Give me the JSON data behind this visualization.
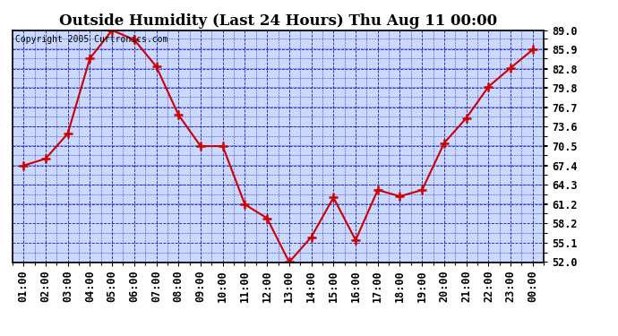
{
  "title": "Outside Humidity (Last 24 Hours) Thu Aug 11 00:00",
  "copyright": "Copyright 2005 Curtronics.com",
  "x_labels": [
    "01:00",
    "02:00",
    "03:00",
    "04:00",
    "05:00",
    "06:00",
    "07:00",
    "08:00",
    "09:00",
    "10:00",
    "11:00",
    "12:00",
    "13:00",
    "14:00",
    "15:00",
    "16:00",
    "17:00",
    "18:00",
    "19:00",
    "20:00",
    "21:00",
    "22:00",
    "23:00",
    "00:00"
  ],
  "x_values": [
    1,
    2,
    3,
    4,
    5,
    6,
    7,
    8,
    9,
    10,
    11,
    12,
    13,
    14,
    15,
    16,
    17,
    18,
    19,
    20,
    21,
    22,
    23,
    24
  ],
  "y_values": [
    67.4,
    68.5,
    72.5,
    84.5,
    89.0,
    87.5,
    83.2,
    75.5,
    70.5,
    70.5,
    61.2,
    59.0,
    52.0,
    56.0,
    62.3,
    55.5,
    63.5,
    62.5,
    63.5,
    71.0,
    75.0,
    80.0,
    83.0,
    85.9
  ],
  "ylim": [
    52.0,
    89.0
  ],
  "yticks": [
    52.0,
    55.1,
    58.2,
    61.2,
    64.3,
    67.4,
    70.5,
    73.6,
    76.7,
    79.8,
    82.8,
    85.9,
    89.0
  ],
  "line_color": "#cc0000",
  "marker_color": "#cc0000",
  "bg_color": "#ccd9ff",
  "outer_bg": "#ffffff",
  "grid_color": "#0000bb",
  "title_fontsize": 12,
  "copyright_fontsize": 7,
  "tick_fontsize": 8.5
}
